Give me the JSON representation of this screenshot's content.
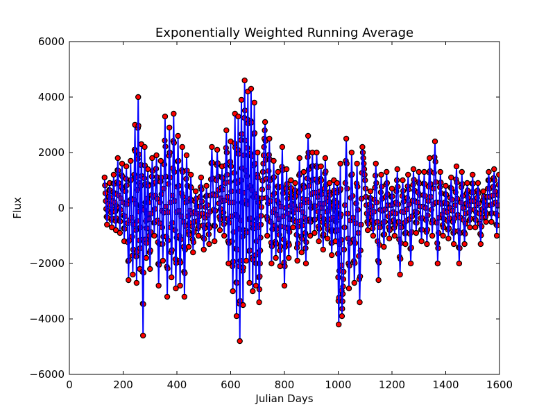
{
  "chart_data": {
    "type": "scatter",
    "title": "Exponentially Weighted Running Average",
    "xlabel": "Julian Days",
    "ylabel": "Flux",
    "xlim": [
      0,
      1600
    ],
    "ylim": [
      -6000,
      6000
    ],
    "xticks": [
      0,
      200,
      400,
      600,
      800,
      1000,
      1200,
      1400,
      1600
    ],
    "yticks": [
      -6000,
      -4000,
      -2000,
      0,
      2000,
      4000,
      6000
    ],
    "xtick_labels": [
      "0",
      "200",
      "400",
      "600",
      "800",
      "1000",
      "1200",
      "1400",
      "1600"
    ],
    "ytick_labels": [
      "−6000",
      "−4000",
      "−2000",
      "0",
      "2000",
      "4000",
      "6000"
    ],
    "grid": false,
    "colors": {
      "points": "#ff0000",
      "point_edge": "#000000",
      "line": "#0000ff"
    },
    "series": [
      {
        "style": "markers",
        "color": "#ff0000",
        "x": [
          131,
          140,
          150,
          158,
          165,
          173,
          180,
          188,
          196,
          204,
          212,
          220,
          228,
          236,
          244,
          250,
          256,
          262,
          268,
          274,
          280,
          286,
          292,
          300,
          308,
          316,
          324,
          332,
          340,
          348,
          356,
          364,
          372,
          380,
          388,
          396,
          404,
          412,
          420,
          428,
          436,
          444,
          452,
          460,
          470,
          480,
          490,
          500,
          510,
          520,
          530,
          540,
          550,
          560,
          568,
          576,
          584,
          592,
          600,
          608,
          616,
          622,
          628,
          634,
          640,
          646,
          652,
          658,
          664,
          670,
          676,
          682,
          688,
          694,
          700,
          706,
          712,
          720,
          728,
          736,
          744,
          752,
          760,
          768,
          776,
          784,
          792,
          800,
          808,
          816,
          824,
          832,
          840,
          848,
          856,
          864,
          872,
          880,
          888,
          896,
          904,
          912,
          920,
          928,
          936,
          944,
          952,
          960,
          968,
          976,
          984,
          990,
          996,
          1002,
          1008,
          1014,
          1020,
          1030,
          1040,
          1050,
          1060,
          1070,
          1080,
          1090,
          1100,
          1110,
          1120,
          1130,
          1140,
          1150,
          1160,
          1170,
          1180,
          1190,
          1200,
          1210,
          1220,
          1230,
          1240,
          1250,
          1260,
          1270,
          1280,
          1290,
          1300,
          1310,
          1320,
          1330,
          1340,
          1350,
          1360,
          1370,
          1380,
          1390,
          1400,
          1410,
          1420,
          1430,
          1440,
          1450,
          1460,
          1470,
          1480,
          1490,
          1500,
          1510,
          1520,
          1530,
          1540,
          1550,
          1560,
          1570,
          1580,
          1590,
          1598
        ],
        "y": [
          1100,
          -600,
          900,
          -700,
          1200,
          -800,
          1800,
          -900,
          1600,
          -1200,
          1500,
          -2600,
          1700,
          -2400,
          3000,
          -2700,
          4000,
          -2200,
          2300,
          -4600,
          2200,
          -1800,
          1400,
          -2200,
          1800,
          -1000,
          1900,
          -2800,
          1700,
          -1900,
          3300,
          -3200,
          2900,
          -2500,
          3400,
          -2900,
          2600,
          -2800,
          2200,
          -3200,
          1900,
          -1400,
          1200,
          -1600,
          600,
          -1000,
          1100,
          -1500,
          800,
          -1300,
          2200,
          -1200,
          2100,
          -800,
          1500,
          -1000,
          2800,
          -2000,
          2400,
          -3000,
          3400,
          -3900,
          3300,
          -4800,
          3900,
          -3500,
          4600,
          -1900,
          4200,
          -2700,
          4300,
          -3000,
          3800,
          -2800,
          2000,
          -3400,
          -600,
          1300,
          3100,
          -1000,
          2500,
          -2000,
          1700,
          -1800,
          1300,
          -2100,
          2200,
          -2800,
          1400,
          -1800,
          1000,
          -700,
          900,
          -1900,
          1800,
          -1600,
          1300,
          -2000,
          2600,
          -1000,
          2000,
          -900,
          2000,
          -1200,
          1500,
          -1500,
          1800,
          -1100,
          900,
          -1700,
          1000,
          -1200,
          900,
          -4200,
          1600,
          -3900,
          -2300,
          2500,
          -2900,
          2000,
          -2700,
          1600,
          -3400,
          2200,
          1000,
          -800,
          600,
          -1000,
          1600,
          -2600,
          1200,
          -1400,
          1300,
          -1100,
          700,
          -1000,
          1400,
          -2400,
          1000,
          -1300,
          1200,
          -2000,
          1400,
          -900,
          1300,
          -1200,
          1300,
          -1300,
          1800,
          -1000,
          2400,
          -2000,
          1300,
          -1000,
          800,
          -1100,
          1100,
          -1300,
          1500,
          -2000,
          1300,
          -1300,
          900,
          -700,
          1200,
          -700,
          900,
          -1300,
          600,
          -500,
          1300,
          -500,
          1400,
          -1000,
          1200
        ]
      },
      {
        "style": "line",
        "color": "#0000ff",
        "x": [
          131,
          140,
          150,
          158,
          165,
          173,
          180,
          188,
          196,
          204,
          212,
          220,
          228,
          236,
          244,
          250,
          256,
          262,
          268,
          274,
          280,
          286,
          292,
          300,
          308,
          316,
          324,
          332,
          340,
          348,
          356,
          364,
          372,
          380,
          388,
          396,
          404,
          412,
          420,
          428,
          436,
          444,
          452,
          460,
          470,
          480,
          490,
          500,
          510,
          520,
          530,
          540,
          550,
          560,
          568,
          576,
          584,
          592,
          600,
          608,
          616,
          622,
          628,
          634,
          640,
          646,
          652,
          658,
          664,
          670,
          676,
          682,
          688,
          694,
          700,
          706,
          712,
          720,
          728,
          736,
          744,
          752,
          760,
          768,
          776,
          784,
          792,
          800,
          808,
          816,
          824,
          832,
          840,
          848,
          856,
          864,
          872,
          880,
          888,
          896,
          904,
          912,
          920,
          928,
          936,
          944,
          952,
          960,
          968,
          976,
          984,
          990,
          996,
          1002,
          1008,
          1014,
          1020,
          1030,
          1040,
          1050,
          1060,
          1070,
          1080,
          1090,
          1100,
          1110,
          1120,
          1130,
          1140,
          1150,
          1160,
          1170,
          1180,
          1190,
          1200,
          1210,
          1220,
          1230,
          1240,
          1250,
          1260,
          1270,
          1280,
          1290,
          1300,
          1310,
          1320,
          1330,
          1340,
          1350,
          1360,
          1370,
          1380,
          1390,
          1400,
          1410,
          1420,
          1430,
          1440,
          1450,
          1460,
          1470,
          1480,
          1490,
          1500,
          1510,
          1520,
          1530,
          1540,
          1550,
          1560,
          1570,
          1580,
          1590,
          1598
        ],
        "y": [
          1000,
          -500,
          800,
          -600,
          1100,
          -700,
          1700,
          -800,
          1500,
          -1100,
          1400,
          -2500,
          1600,
          -2300,
          2900,
          -2600,
          3900,
          -2100,
          2200,
          -4500,
          2100,
          -1700,
          1300,
          -2100,
          1700,
          -900,
          1800,
          -2700,
          1600,
          -1800,
          3200,
          -3100,
          2800,
          -2400,
          3300,
          -2800,
          2500,
          -2700,
          2100,
          -3100,
          1800,
          -1300,
          1100,
          -1500,
          500,
          -900,
          1000,
          -1400,
          700,
          -1200,
          2100,
          -1100,
          2000,
          -700,
          1400,
          -900,
          2700,
          -1900,
          2300,
          -2900,
          3300,
          -3800,
          3200,
          -4700,
          3800,
          -3400,
          4500,
          -1800,
          4100,
          -2600,
          4200,
          -2900,
          3700,
          -2700,
          1900,
          -3300,
          -500,
          1200,
          3000,
          -900,
          2400,
          -1900,
          1600,
          -1700,
          1200,
          -2000,
          2100,
          -2700,
          1300,
          -1700,
          900,
          -600,
          800,
          -1800,
          1700,
          -1500,
          1200,
          -1900,
          2500,
          -900,
          1900,
          -800,
          1900,
          -1100,
          1400,
          -1400,
          1700,
          -1000,
          800,
          -1600,
          900,
          -1100,
          800,
          -4100,
          1500,
          -3800,
          -2200,
          2400,
          -2800,
          1900,
          -2600,
          1500,
          -3300,
          2100,
          900,
          -700,
          500,
          -900,
          1500,
          -2500,
          1100,
          -1300,
          1200,
          -1000,
          600,
          -900,
          1300,
          -2300,
          900,
          -1200,
          1100,
          -1900,
          1300,
          -800,
          1200,
          -1100,
          1200,
          -1200,
          1700,
          -900,
          2300,
          -1900,
          1200,
          -900,
          700,
          -1000,
          1000,
          -1200,
          1400,
          -1900,
          1200,
          -1200,
          800,
          -600,
          1100,
          -600,
          800,
          -1200,
          500,
          -400,
          1200,
          -400,
          1300,
          -900,
          1100
        ]
      }
    ]
  }
}
